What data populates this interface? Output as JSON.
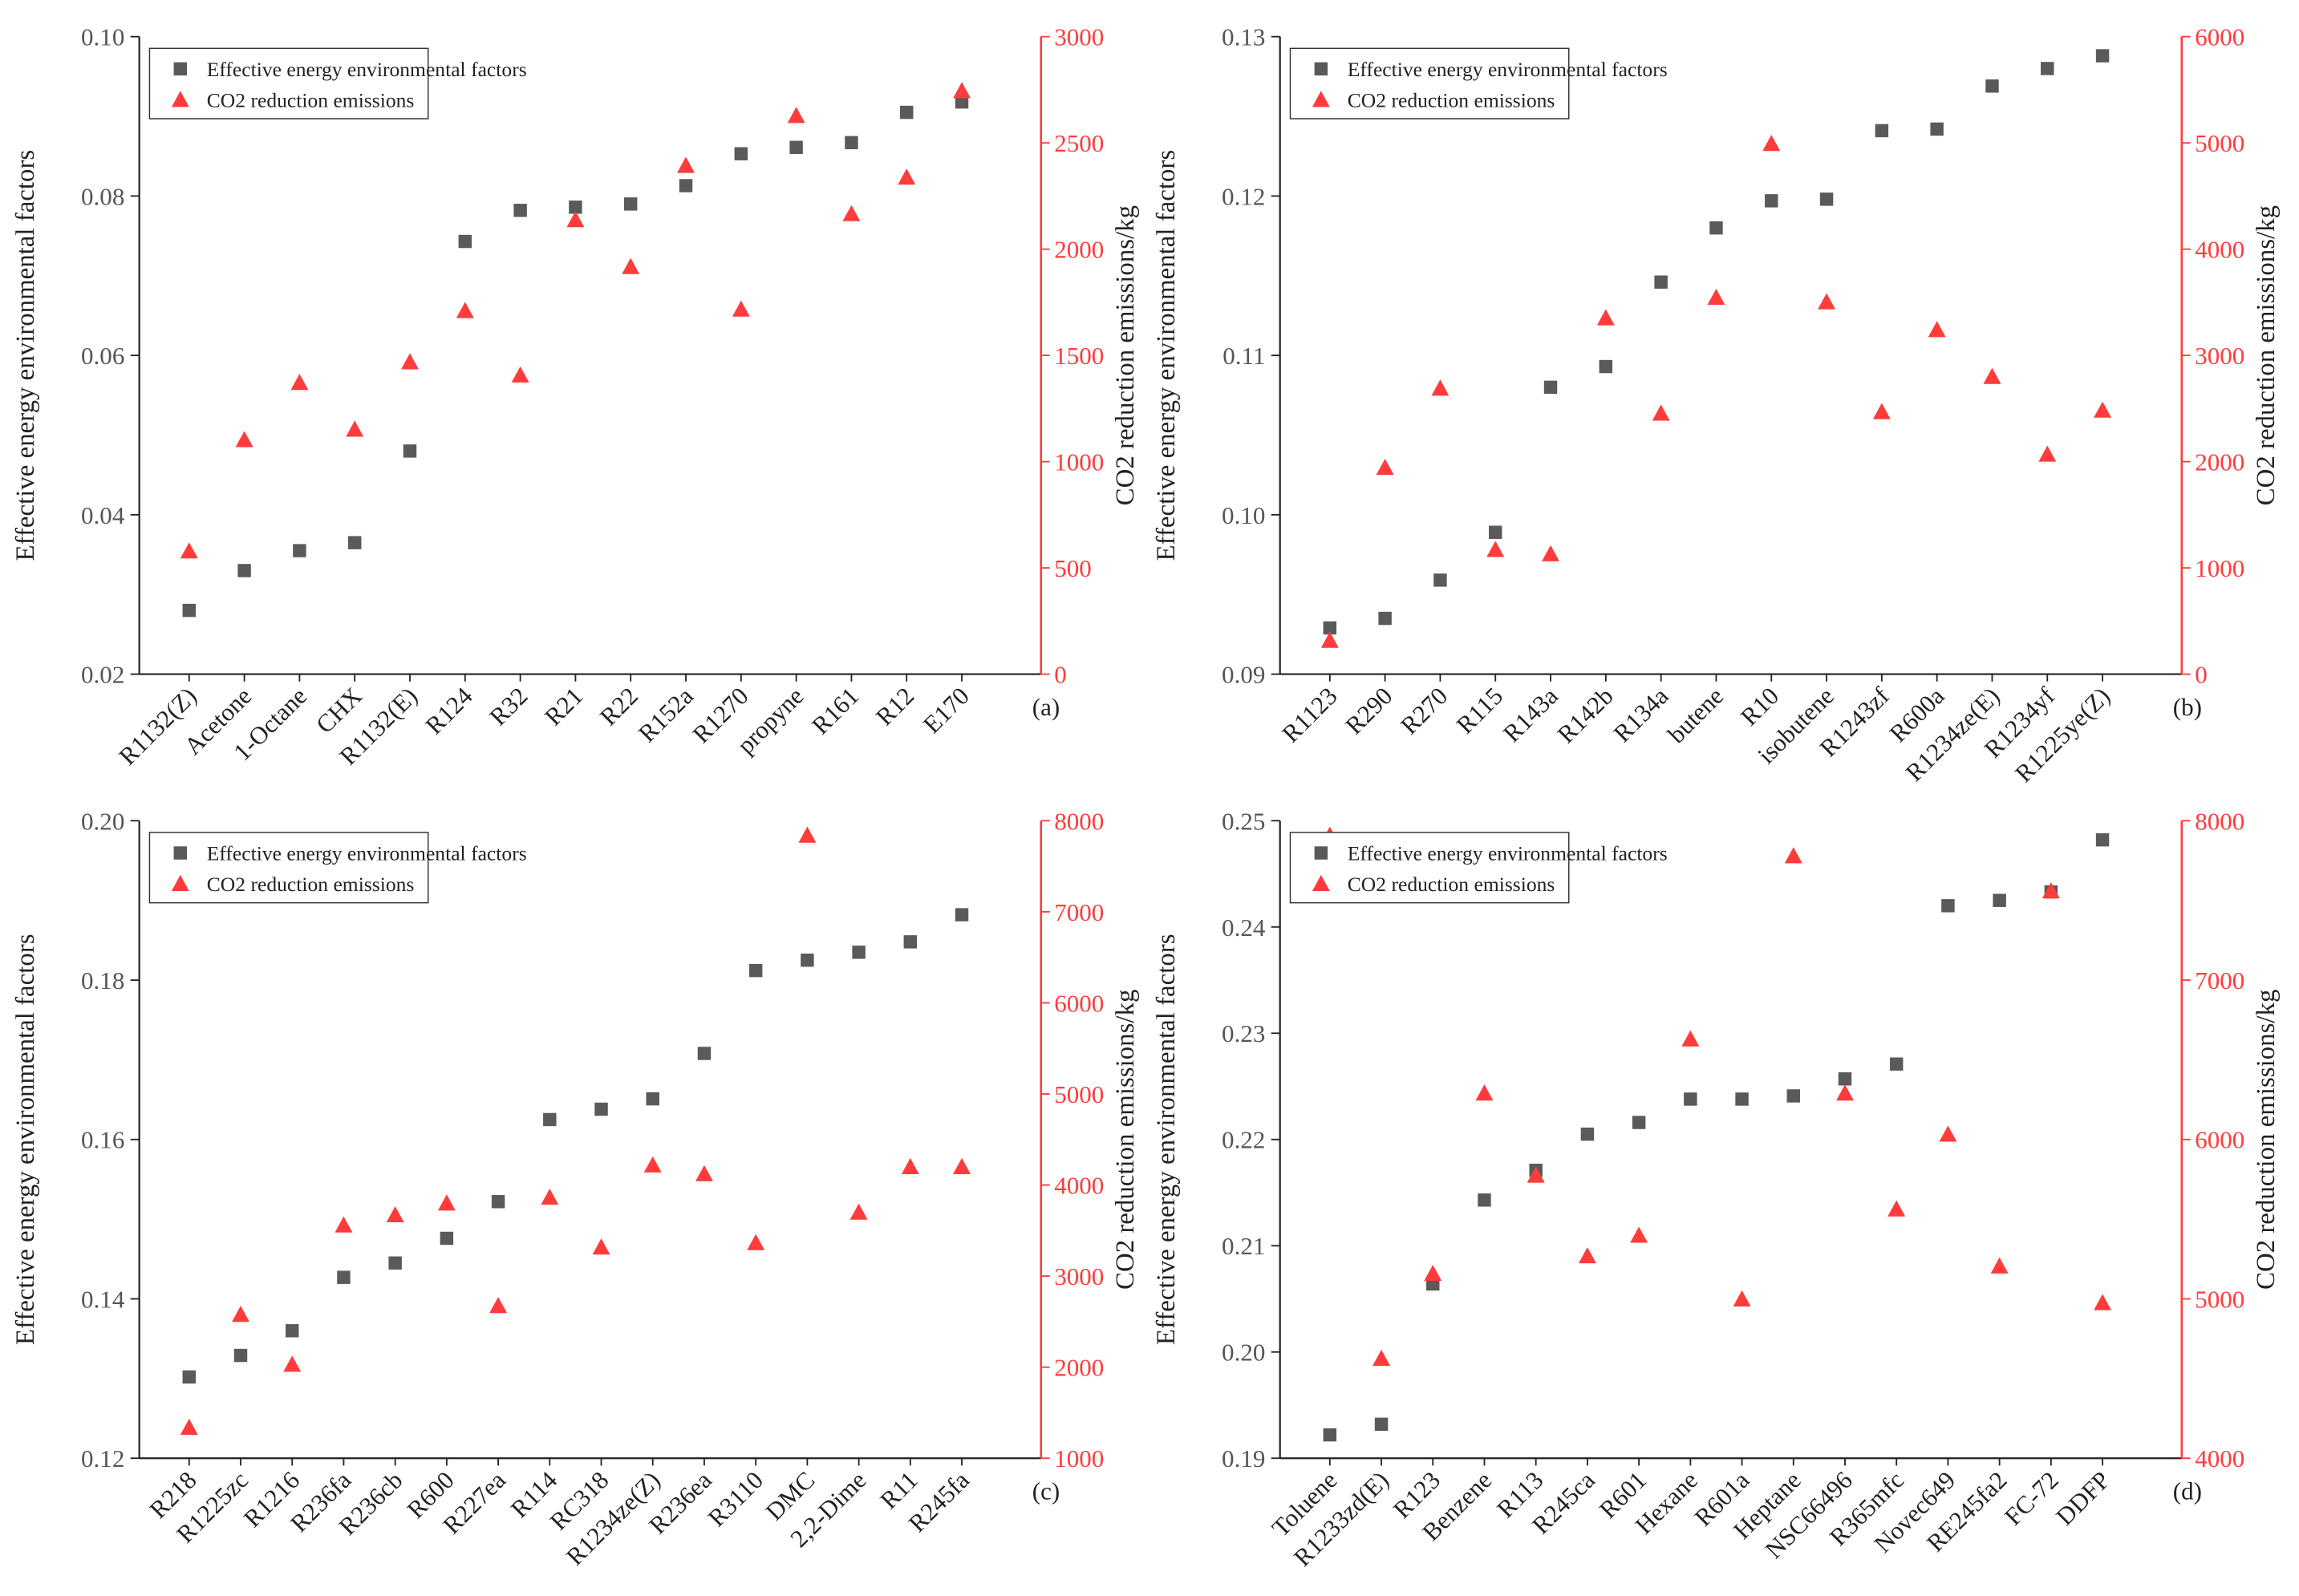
{
  "chart_data": [
    {
      "type": "scatter",
      "panel_label": "(a)",
      "ylabel": "Effective energy environmental factors",
      "y2label": "CO2 reduction emissions/kg",
      "categories": [
        "R1132(Z)",
        "Acetone",
        "1-Octane",
        "CHX",
        "R1132(E)",
        "R124",
        "R32",
        "R21",
        "R22",
        "R152a",
        "R1270",
        "propyne",
        "R161",
        "R12",
        "E170"
      ],
      "ylim": [
        0.02,
        0.1
      ],
      "yticks": [
        0.02,
        0.04,
        0.06,
        0.08,
        {
          "value": 0.1,
          "label": "0.10"
        }
      ],
      "y2lim": [
        0,
        3000
      ],
      "y2ticks": [
        0,
        500,
        1000,
        1500,
        2000,
        2500,
        3000
      ],
      "series": [
        {
          "name": "Effective energy environmental factors",
          "color": "#5a5a5a",
          "marker": "square",
          "values": [
            0.028,
            0.033,
            0.0355,
            0.0365,
            0.048,
            0.0743,
            0.0782,
            0.0786,
            0.079,
            0.0813,
            0.0853,
            0.0861,
            0.0867,
            0.0905,
            0.0918
          ]
        },
        {
          "name": "CO2 reduction emissions",
          "color": "#ff3b3b",
          "marker": "triangle",
          "axis": "y2",
          "values": [
            579,
            1103,
            1372,
            1152,
            1469,
            1710,
            1407,
            2138,
            1917,
            2393,
            1717,
            2628,
            2166,
            2338,
            2745
          ]
        }
      ]
    },
    {
      "type": "scatter",
      "panel_label": "(b)",
      "ylabel": "Effective energy environmental factors",
      "y2label": "CO2 reduction emissions/kg",
      "categories": [
        "R1123",
        "R290",
        "R270",
        "R115",
        "R143a",
        "R142b",
        "R134a",
        "butene",
        "R10",
        "isobutene",
        "R1243zf",
        "R600a",
        "R1234ze(E)",
        "R1234yf",
        "R1225ye(Z)"
      ],
      "ylim": [
        0.09,
        0.13
      ],
      "yticks": [
        0.09,
        {
          "value": 0.1,
          "label": "0.10"
        },
        0.11,
        0.12,
        0.13
      ],
      "y2lim": [
        0,
        6000
      ],
      "y2ticks": [
        0,
        1000,
        2000,
        3000,
        4000,
        5000,
        6000
      ],
      "series": [
        {
          "name": "Effective energy environmental factors",
          "color": "#5a5a5a",
          "marker": "square",
          "values": [
            0.0929,
            0.0935,
            0.0959,
            0.0989,
            0.108,
            0.1093,
            0.1146,
            0.118,
            0.1197,
            0.1198,
            0.1241,
            0.1242,
            0.1269,
            0.128,
            0.1288
          ]
        },
        {
          "name": "CO2 reduction emissions",
          "color": "#ff3b3b",
          "marker": "triangle",
          "axis": "y2",
          "values": [
            317,
            1945,
            2690,
            1172,
            1131,
            3352,
            2455,
            3545,
            4993,
            3503,
            2469,
            3241,
            2800,
            2069,
            2483
          ]
        }
      ]
    },
    {
      "type": "scatter",
      "panel_label": "(c)",
      "ylabel": "Effective energy environmental factors",
      "y2label": "CO2 reduction emissions/kg",
      "categories": [
        "R218",
        "R1225zc",
        "R1216",
        "R236fa",
        "R236cb",
        "R600",
        "R227ea",
        "R114",
        "RC318",
        "R1234ze(Z)",
        "R236ea",
        "R3110",
        "DMC",
        "2,2-Dime",
        "R11",
        "R245fa"
      ],
      "ylim": [
        0.12,
        0.2
      ],
      "yticks": [
        0.12,
        0.14,
        0.16,
        0.18,
        {
          "value": 0.2,
          "label": "0.20"
        }
      ],
      "y2lim": [
        1000,
        8000
      ],
      "y2ticks": [
        1000,
        2000,
        3000,
        4000,
        5000,
        6000,
        7000,
        8000
      ],
      "series": [
        {
          "name": "Effective energy environmental factors",
          "color": "#5a5a5a",
          "marker": "square",
          "values": [
            0.1302,
            0.1329,
            0.136,
            0.1427,
            0.1445,
            0.1476,
            0.1522,
            0.1625,
            0.1638,
            0.1651,
            0.1708,
            0.1812,
            0.1825,
            0.1835,
            0.1848,
            0.1882
          ]
        },
        {
          "name": "CO2 reduction emissions",
          "color": "#ff3b3b",
          "marker": "triangle",
          "axis": "y2",
          "values": [
            1338,
            2577,
            2030,
            3559,
            3671,
            3800,
            2674,
            3864,
            3317,
            4218,
            4122,
            3365,
            7839,
            3700,
            4200,
            4200
          ]
        }
      ]
    },
    {
      "type": "scatter",
      "panel_label": "(d)",
      "ylabel": "Effective energy environmental factors",
      "y2label": "CO2 reduction emissions/kg",
      "categories": [
        "Toluene",
        "R1233zd(E)",
        "R123",
        "Benzene",
        "R113",
        "R245ca",
        "R601",
        "Hexane",
        "R601a",
        "Heptane",
        "NSC66496",
        "R365mfc",
        "Novec649",
        "RE245fa2",
        "FC-72",
        "DDFP"
      ],
      "ylim": [
        0.19,
        0.25
      ],
      "yticks": [
        0.19,
        {
          "value": 0.2,
          "label": "0.20"
        },
        0.21,
        0.22,
        0.23,
        0.24,
        0.25
      ],
      "y2lim": [
        4000,
        8000
      ],
      "y2ticks": [
        4000,
        5000,
        6000,
        7000,
        8000
      ],
      "series": [
        {
          "name": "Effective energy environmental factors",
          "color": "#5a5a5a",
          "marker": "square",
          "values": [
            0.1922,
            0.1932,
            0.2064,
            0.2143,
            0.2171,
            0.2205,
            0.2216,
            0.2238,
            0.2238,
            0.2241,
            0.2257,
            0.2271,
            0.242,
            0.2425,
            0.2433,
            0.2482
          ]
        },
        {
          "name": "CO2 reduction emissions",
          "color": "#ff3b3b",
          "marker": "triangle",
          "axis": "y2",
          "values": [
            7908,
            4626,
            5159,
            6290,
            5775,
            5269,
            5398,
            6630,
            4998,
            7779,
            6290,
            5563,
            6032,
            5205,
            7559,
            4975
          ]
        }
      ]
    }
  ]
}
